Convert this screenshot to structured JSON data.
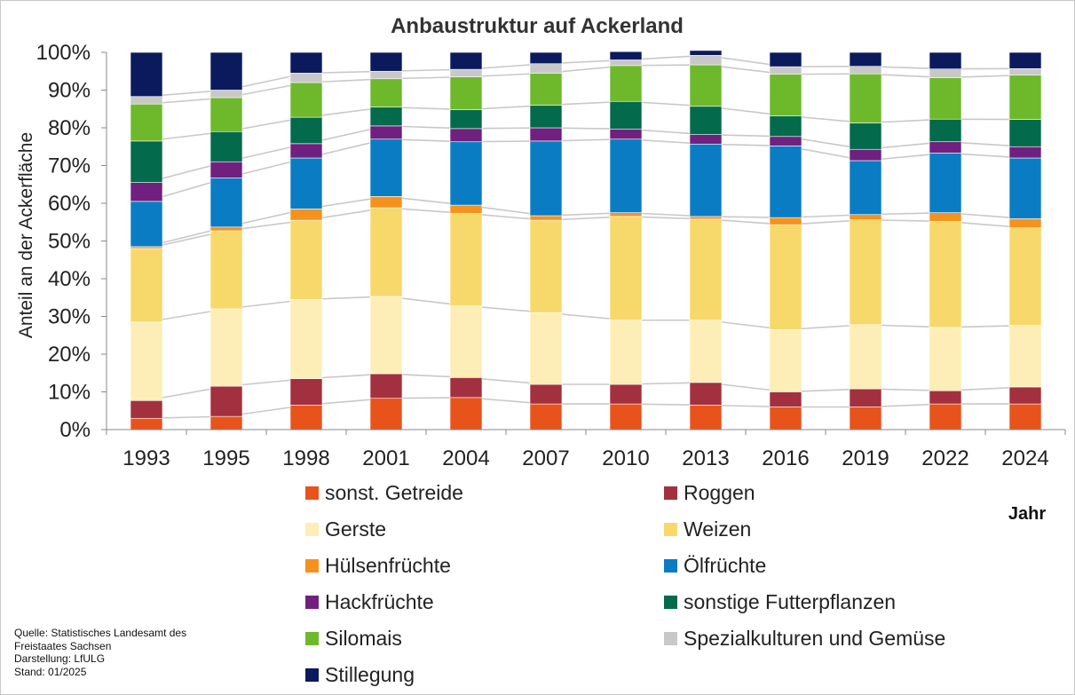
{
  "chart_data": {
    "type": "bar",
    "stacked": true,
    "title": "Anbaustruktur auf Ackerland",
    "ylabel": "Anteil an der Ackerfläche",
    "xlabel": "Jahr",
    "ylim": [
      0,
      100
    ],
    "yticks": [
      "0%",
      "10%",
      "20%",
      "30%",
      "40%",
      "50%",
      "60%",
      "70%",
      "80%",
      "90%",
      "100%"
    ],
    "grid": false,
    "legend_position": "bottom",
    "categories": [
      "1993",
      "1995",
      "1998",
      "2001",
      "2004",
      "2007",
      "2010",
      "2013",
      "2016",
      "2019",
      "2022",
      "2024"
    ],
    "series": [
      {
        "name": "sonst. Getreide",
        "color": "#E8531C",
        "values": [
          3,
          3.5,
          6.5,
          8.3,
          8.5,
          6.8,
          6.8,
          6.5,
          6,
          6,
          6.8,
          6.8
        ]
      },
      {
        "name": "Roggen",
        "color": "#A3303E",
        "values": [
          4.7,
          8,
          7,
          6.5,
          5.3,
          5.2,
          5.2,
          6,
          4,
          4.8,
          3.5,
          4.5
        ]
      },
      {
        "name": "Gerste",
        "color": "#FCEEB6",
        "values": [
          20.8,
          20.5,
          21,
          20.5,
          19,
          19,
          17,
          16.5,
          16.5,
          17,
          16.8,
          16.3
        ]
      },
      {
        "name": "Weizen",
        "color": "#F7D86A",
        "values": [
          19.5,
          20.7,
          21,
          23.5,
          24.5,
          24.5,
          27.5,
          26.8,
          27.8,
          27.8,
          28.1,
          25.9
        ]
      },
      {
        "name": "Hülsenfrüchte",
        "color": "#F5921E",
        "values": [
          0.5,
          1,
          3,
          3,
          2.2,
          1.2,
          1,
          0.7,
          1.9,
          1.4,
          2.3,
          2.4
        ]
      },
      {
        "name": "Ölfrüchte",
        "color": "#0A7CC4",
        "values": [
          12,
          13,
          13.5,
          15.2,
          16.8,
          19.8,
          19.5,
          19.2,
          19,
          14.3,
          15.8,
          16.1
        ]
      },
      {
        "name": "Hackfrüchte",
        "color": "#70207E",
        "values": [
          5,
          4.3,
          3.8,
          3.5,
          3.5,
          3.5,
          2.7,
          2.5,
          2.5,
          3,
          3,
          3
        ]
      },
      {
        "name": "sonstige Futterpflanzen",
        "color": "#046A4C",
        "values": [
          11,
          8,
          7,
          5,
          5,
          6,
          7.3,
          7.5,
          5.5,
          7,
          6,
          7.2
        ]
      },
      {
        "name": "Silomais",
        "color": "#6DB92B",
        "values": [
          9.8,
          9,
          9.2,
          7.5,
          8.7,
          8.5,
          9.5,
          11,
          11,
          13,
          11,
          11.8
        ]
      },
      {
        "name": "Spezialkulturen und Gemüse",
        "color": "#C8C8C8",
        "values": [
          2,
          2,
          2.5,
          2,
          2,
          2.5,
          1.5,
          2.5,
          2,
          2,
          2.3,
          1.7
        ]
      },
      {
        "name": "Stillegung",
        "color": "#0A1A5C",
        "values": [
          11.7,
          10,
          5.5,
          5,
          4.5,
          3,
          2.2,
          1.3,
          3.8,
          3.7,
          4.4,
          4.3
        ]
      }
    ]
  },
  "source": {
    "line1": "Quelle: Statistisches Landesamt des",
    "line2": "Freistaates Sachsen",
    "line3": "Darstellung: LfULG",
    "line4": "Stand: 01/2025"
  }
}
